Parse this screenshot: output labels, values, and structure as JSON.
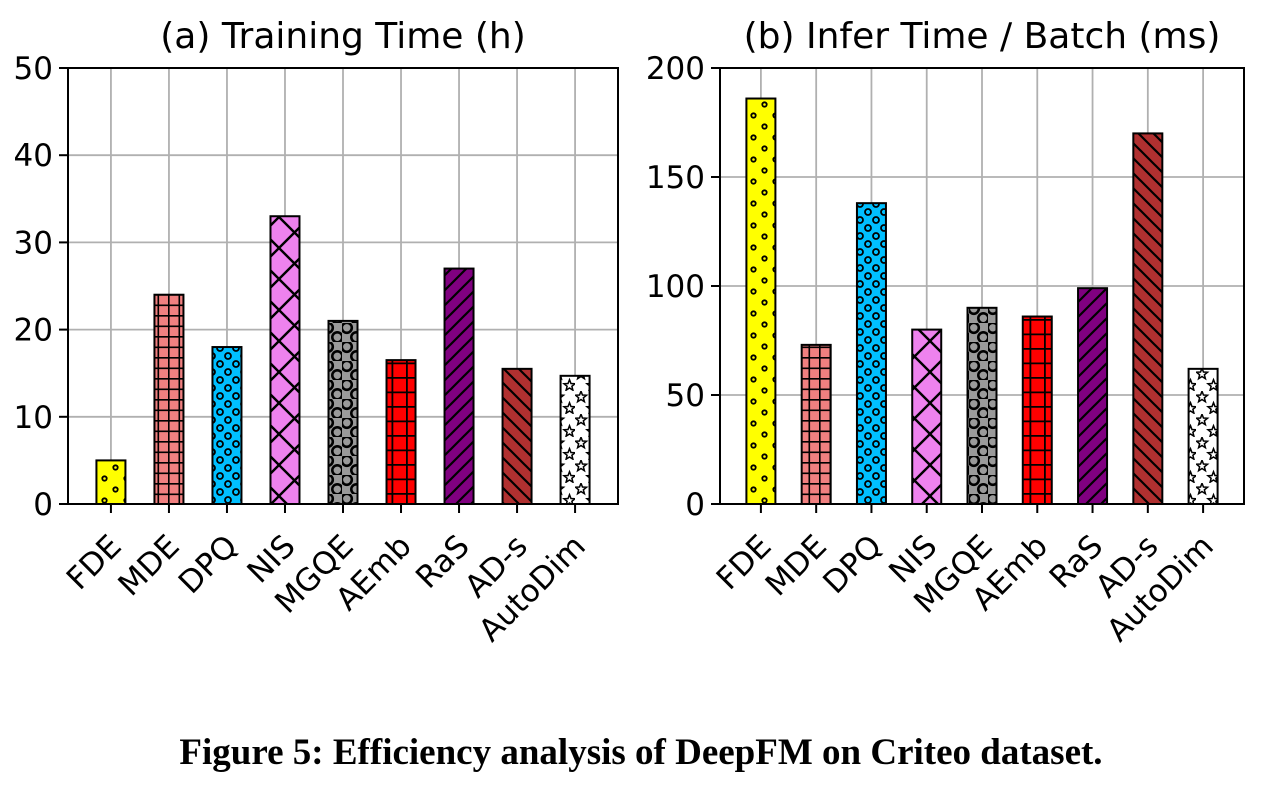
{
  "caption": "Figure 5: Efficiency analysis of DeepFM on Criteo dataset.",
  "chart_data": [
    {
      "type": "bar",
      "title": "(a) Training Time (h)",
      "categories": [
        "FDE",
        "MDE",
        "DPQ",
        "NIS",
        "MGQE",
        "AEmb",
        "RaS",
        "AD-s",
        "AutoDim"
      ],
      "values": [
        5,
        24,
        18,
        33,
        21,
        16.5,
        27,
        15.5,
        14.7
      ],
      "ylim": [
        0,
        50
      ],
      "yticks": [
        0,
        10,
        20,
        30,
        40,
        50
      ],
      "grid": true,
      "legend": "none",
      "colors": [
        "#ffff00",
        "#f08080",
        "#00bfff",
        "#ee82ee",
        "#9a9a9a",
        "#ff0000",
        "#800080",
        "#b03030",
        "#ffffff"
      ],
      "hatches": [
        "dot",
        "grid-fine",
        "circle-small",
        "cross",
        "circle-large",
        "grid",
        "slash",
        "backslash",
        "star"
      ]
    },
    {
      "type": "bar",
      "title": "(b) Infer Time / Batch (ms)",
      "categories": [
        "FDE",
        "MDE",
        "DPQ",
        "NIS",
        "MGQE",
        "AEmb",
        "RaS",
        "AD-s",
        "AutoDim"
      ],
      "values": [
        186,
        73,
        138,
        80,
        90,
        86,
        99,
        170,
        62
      ],
      "ylim": [
        0,
        200
      ],
      "yticks": [
        0,
        50,
        100,
        150,
        200
      ],
      "grid": true,
      "legend": "none",
      "colors": [
        "#ffff00",
        "#f08080",
        "#00bfff",
        "#ee82ee",
        "#9a9a9a",
        "#ff0000",
        "#800080",
        "#b03030",
        "#ffffff"
      ],
      "hatches": [
        "dot",
        "grid-fine",
        "circle-small",
        "cross",
        "circle-large",
        "grid",
        "slash",
        "backslash",
        "star"
      ]
    }
  ],
  "styles": {
    "bar_edge_color": "#000000",
    "hatch_color": "#000000",
    "grid_color": "#b0b0b0",
    "axis_color": "#000000",
    "text_color": "#000000",
    "background": "#ffffff"
  }
}
